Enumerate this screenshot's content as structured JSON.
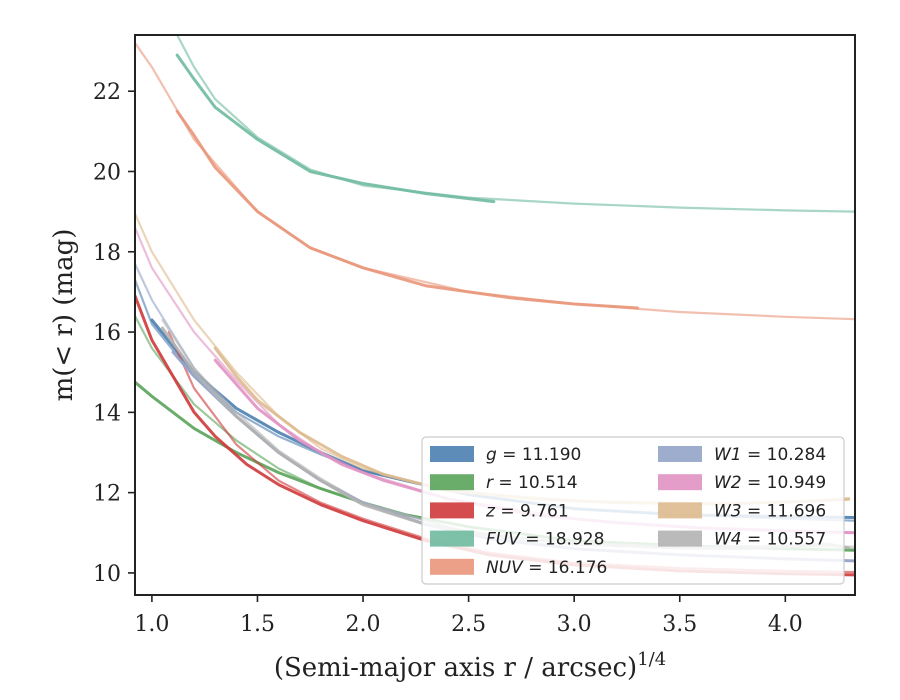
{
  "chart_data": {
    "type": "line",
    "xlabel": "(Semi-major axis r / arcsec)",
    "xlabel_sup": "1/4",
    "ylabel": "m(< r) (mag)",
    "xlim": [
      0.92,
      4.33
    ],
    "ylim": [
      23.4,
      9.45
    ],
    "y_inverted": true,
    "xticks": [
      1.0,
      1.5,
      2.0,
      2.5,
      3.0,
      3.5,
      4.0
    ],
    "xtick_labels": [
      "1.0",
      "1.5",
      "2.0",
      "2.5",
      "3.0",
      "3.5",
      "4.0"
    ],
    "yticks": [
      10,
      12,
      14,
      16,
      18,
      20,
      22
    ],
    "ytick_labels": [
      "10",
      "12",
      "14",
      "16",
      "18",
      "20",
      "22"
    ],
    "grid": false,
    "legend_placement": "lower-right",
    "series": [
      {
        "key": "g",
        "name": "g = 11.190",
        "color": "#4c7fb0",
        "data": [
          [
            1.0,
            16.3
          ],
          [
            1.2,
            15.0
          ],
          [
            1.4,
            14.1
          ],
          [
            1.6,
            13.5
          ],
          [
            1.8,
            13.0
          ],
          [
            2.0,
            12.55
          ],
          [
            2.2,
            12.3
          ],
          [
            2.5,
            11.95
          ],
          [
            3.0,
            11.6
          ],
          [
            3.5,
            11.45
          ],
          [
            4.0,
            11.4
          ],
          [
            4.33,
            11.38
          ]
        ],
        "secondary": [
          [
            0.92,
            17.3
          ],
          [
            1.0,
            16.2
          ],
          [
            1.2,
            14.9
          ],
          [
            1.4,
            14.0
          ],
          [
            1.6,
            13.4
          ],
          [
            1.8,
            12.95
          ],
          [
            2.0,
            12.55
          ],
          [
            2.2,
            12.3
          ],
          [
            2.5,
            11.95
          ],
          [
            3.0,
            11.6
          ],
          [
            3.5,
            11.45
          ],
          [
            4.0,
            11.35
          ],
          [
            4.33,
            11.3
          ]
        ]
      },
      {
        "key": "r",
        "name": "r = 10.514",
        "color": "#5aa35a",
        "data": [
          [
            0.92,
            14.75
          ],
          [
            1.0,
            14.4
          ],
          [
            1.2,
            13.6
          ],
          [
            1.4,
            13.0
          ],
          [
            1.6,
            12.5
          ],
          [
            1.8,
            12.1
          ],
          [
            2.0,
            11.75
          ],
          [
            2.2,
            11.45
          ],
          [
            2.5,
            11.15
          ],
          [
            3.0,
            10.8
          ],
          [
            3.5,
            10.68
          ],
          [
            4.0,
            10.6
          ],
          [
            4.33,
            10.57
          ]
        ],
        "secondary": [
          [
            0.92,
            16.4
          ],
          [
            1.0,
            15.6
          ],
          [
            1.2,
            14.2
          ],
          [
            1.4,
            13.3
          ],
          [
            1.6,
            12.6
          ],
          [
            1.8,
            12.1
          ],
          [
            2.0,
            11.75
          ],
          [
            2.2,
            11.45
          ],
          [
            2.5,
            11.15
          ],
          [
            3.0,
            10.8
          ],
          [
            3.5,
            10.68
          ],
          [
            4.0,
            10.6
          ],
          [
            4.33,
            10.55
          ]
        ]
      },
      {
        "key": "z",
        "name": "z = 9.761",
        "color": "#d0393b",
        "data": [
          [
            0.92,
            16.9
          ],
          [
            1.0,
            15.8
          ],
          [
            1.1,
            14.9
          ],
          [
            1.2,
            14.0
          ],
          [
            1.3,
            13.4
          ],
          [
            1.45,
            12.7
          ],
          [
            1.6,
            12.2
          ],
          [
            1.8,
            11.7
          ],
          [
            2.0,
            11.3
          ],
          [
            2.3,
            10.8
          ],
          [
            2.6,
            10.45
          ],
          [
            3.0,
            10.2
          ],
          [
            3.5,
            10.05
          ],
          [
            4.0,
            9.98
          ],
          [
            4.33,
            9.95
          ]
        ],
        "secondary": [
          [
            1.08,
            16.0
          ],
          [
            1.2,
            14.6
          ],
          [
            1.4,
            13.2
          ],
          [
            1.6,
            12.3
          ],
          [
            1.8,
            11.75
          ],
          [
            2.0,
            11.35
          ],
          [
            2.3,
            10.85
          ],
          [
            2.6,
            10.5
          ],
          [
            3.0,
            10.25
          ],
          [
            3.5,
            10.12
          ],
          [
            4.0,
            10.05
          ],
          [
            4.33,
            10.02
          ]
        ]
      },
      {
        "key": "FUV",
        "name": "FUV = 18.928",
        "color": "#6fba9f",
        "data": [
          [
            1.12,
            22.9
          ],
          [
            1.2,
            22.3
          ],
          [
            1.3,
            21.6
          ],
          [
            1.5,
            20.8
          ],
          [
            1.75,
            20.0
          ],
          [
            2.0,
            19.7
          ],
          [
            2.3,
            19.45
          ],
          [
            2.62,
            19.25
          ]
        ],
        "secondary": [
          [
            1.12,
            23.4
          ],
          [
            1.2,
            22.6
          ],
          [
            1.3,
            21.8
          ],
          [
            1.5,
            20.85
          ],
          [
            1.75,
            20.05
          ],
          [
            2.0,
            19.65
          ],
          [
            2.5,
            19.35
          ],
          [
            3.0,
            19.2
          ],
          [
            3.5,
            19.1
          ],
          [
            4.0,
            19.03
          ],
          [
            4.33,
            19.0
          ]
        ]
      },
      {
        "key": "NUV",
        "name": "NUV = 16.176",
        "color": "#e9967a",
        "data": [
          [
            1.12,
            21.5
          ],
          [
            1.2,
            20.9
          ],
          [
            1.3,
            20.1
          ],
          [
            1.5,
            19.0
          ],
          [
            1.75,
            18.1
          ],
          [
            2.0,
            17.6
          ],
          [
            2.3,
            17.15
          ],
          [
            2.7,
            16.85
          ],
          [
            3.0,
            16.7
          ],
          [
            3.3,
            16.6
          ]
        ],
        "secondary": [
          [
            0.92,
            23.2
          ],
          [
            1.0,
            22.6
          ],
          [
            1.2,
            20.8
          ],
          [
            1.5,
            19.0
          ],
          [
            1.75,
            18.1
          ],
          [
            2.0,
            17.6
          ],
          [
            2.5,
            17.0
          ],
          [
            3.0,
            16.7
          ],
          [
            3.5,
            16.5
          ],
          [
            4.0,
            16.38
          ],
          [
            4.33,
            16.32
          ]
        ]
      },
      {
        "key": "W1",
        "name": "W1 = 10.284",
        "color": "#94a3c8",
        "data": [
          [
            1.1,
            15.5
          ],
          [
            1.2,
            14.9
          ],
          [
            1.4,
            13.9
          ],
          [
            1.6,
            13.0
          ],
          [
            1.8,
            12.3
          ],
          [
            2.0,
            11.75
          ],
          [
            2.3,
            11.2
          ],
          [
            2.6,
            10.85
          ],
          [
            3.0,
            10.6
          ],
          [
            3.5,
            10.45
          ],
          [
            4.0,
            10.35
          ],
          [
            4.33,
            10.3
          ]
        ],
        "secondary": [
          [
            0.92,
            17.7
          ],
          [
            1.0,
            16.8
          ],
          [
            1.2,
            15.1
          ],
          [
            1.4,
            13.9
          ],
          [
            1.6,
            13.0
          ],
          [
            1.8,
            12.3
          ],
          [
            2.0,
            11.75
          ],
          [
            2.5,
            11.0
          ],
          [
            3.0,
            10.6
          ],
          [
            3.5,
            10.45
          ],
          [
            4.0,
            10.35
          ],
          [
            4.33,
            10.3
          ]
        ]
      },
      {
        "key": "W2",
        "name": "W2 = 10.949",
        "color": "#e192c3",
        "data": [
          [
            1.3,
            15.3
          ],
          [
            1.4,
            14.7
          ],
          [
            1.5,
            14.1
          ],
          [
            1.7,
            13.3
          ],
          [
            1.9,
            12.7
          ],
          [
            2.1,
            12.3
          ],
          [
            2.4,
            11.85
          ],
          [
            2.8,
            11.45
          ],
          [
            3.2,
            11.25
          ],
          [
            3.6,
            11.12
          ],
          [
            4.0,
            11.05
          ],
          [
            4.33,
            11.0
          ]
        ],
        "secondary": [
          [
            0.92,
            18.6
          ],
          [
            1.0,
            17.6
          ],
          [
            1.2,
            16.0
          ],
          [
            1.4,
            14.8
          ],
          [
            1.6,
            13.7
          ],
          [
            1.8,
            13.0
          ],
          [
            2.0,
            12.5
          ],
          [
            2.4,
            11.85
          ],
          [
            3.0,
            11.35
          ],
          [
            3.5,
            11.15
          ],
          [
            4.0,
            11.05
          ],
          [
            4.33,
            11.0
          ]
        ]
      },
      {
        "key": "W3",
        "name": "W3 = 11.696",
        "color": "#deba8e",
        "data": [
          [
            1.3,
            15.6
          ],
          [
            1.4,
            14.9
          ],
          [
            1.5,
            14.3
          ],
          [
            1.7,
            13.5
          ],
          [
            1.9,
            12.9
          ],
          [
            2.1,
            12.45
          ],
          [
            2.4,
            12.05
          ],
          [
            2.8,
            11.85
          ],
          [
            3.2,
            11.75
          ],
          [
            3.7,
            11.72
          ],
          [
            4.1,
            11.78
          ],
          [
            4.3,
            11.85
          ]
        ],
        "secondary": [
          [
            0.92,
            18.95
          ],
          [
            1.0,
            18.0
          ],
          [
            1.2,
            16.3
          ],
          [
            1.4,
            15.0
          ],
          [
            1.6,
            13.9
          ],
          [
            1.8,
            13.1
          ],
          [
            2.0,
            12.6
          ],
          [
            2.4,
            12.05
          ],
          [
            3.0,
            11.8
          ],
          [
            3.7,
            11.72
          ],
          [
            4.3,
            11.82
          ]
        ]
      },
      {
        "key": "W4",
        "name": "W4 = 10.557",
        "color": "#b2b2b2",
        "data": [
          [
            1.05,
            16.1
          ],
          [
            1.2,
            15.0
          ],
          [
            1.4,
            13.9
          ],
          [
            1.6,
            13.0
          ],
          [
            1.8,
            12.3
          ],
          [
            2.0,
            11.7
          ],
          [
            2.3,
            11.2
          ],
          [
            2.6,
            10.95
          ],
          [
            3.0,
            10.72
          ],
          [
            3.5,
            10.62
          ],
          [
            3.8,
            10.6
          ],
          [
            4.0,
            10.65
          ],
          [
            4.2,
            10.72
          ],
          [
            4.3,
            10.62
          ]
        ],
        "secondary": [
          [
            1.05,
            16.3
          ],
          [
            1.2,
            15.1
          ],
          [
            1.4,
            14.0
          ],
          [
            1.6,
            13.05
          ],
          [
            1.8,
            12.35
          ],
          [
            2.0,
            11.75
          ],
          [
            2.5,
            11.0
          ],
          [
            3.0,
            10.75
          ],
          [
            3.5,
            10.65
          ],
          [
            4.0,
            10.68
          ],
          [
            4.33,
            10.65
          ]
        ]
      }
    ],
    "legend": {
      "col1": [
        "g",
        "r",
        "z",
        "FUV",
        "NUV"
      ],
      "col2": [
        "W1",
        "W2",
        "W3",
        "W4"
      ],
      "entries": {
        "g": {
          "italic": "g",
          "rest": " = 11.190"
        },
        "r": {
          "italic": "r",
          "rest": " = 10.514"
        },
        "z": {
          "italic": "z",
          "rest": " = 9.761"
        },
        "FUV": {
          "italic": "FUV",
          "rest": " = 18.928"
        },
        "NUV": {
          "italic": "NUV",
          "rest": " = 16.176"
        },
        "W1": {
          "italic": "W1",
          "rest": " = 10.284"
        },
        "W2": {
          "italic": "W2",
          "rest": " = 10.949"
        },
        "W3": {
          "italic": "W3",
          "rest": " = 11.696"
        },
        "W4": {
          "italic": "W4",
          "rest": " = 10.557"
        }
      }
    }
  }
}
